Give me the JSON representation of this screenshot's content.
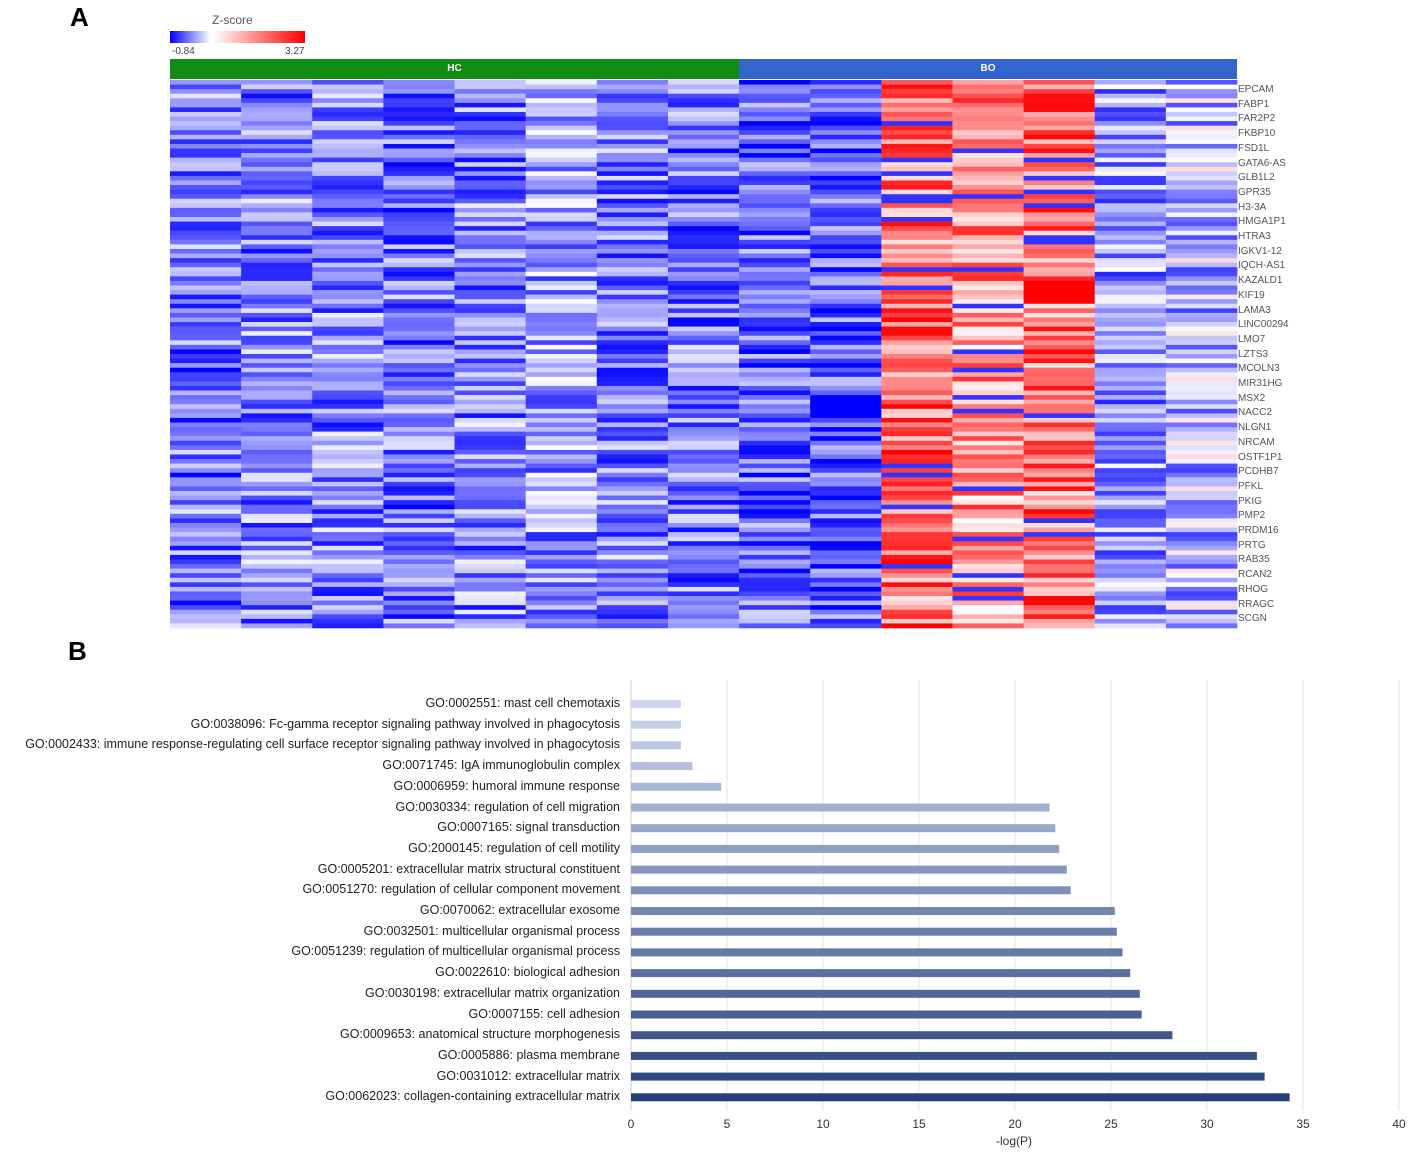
{
  "panels": {
    "a_label": "A",
    "b_label": "B"
  },
  "heatmap": {
    "legend_title": "Z-score",
    "legend_min": "-0.84",
    "legend_max": "3.27",
    "groups": [
      {
        "name": "HC",
        "columns": 8,
        "color": "#128c12"
      },
      {
        "name": "BO",
        "columns": 7,
        "color": "#3366cc"
      }
    ],
    "genes": [
      "EPCAM",
      "FABP1",
      "FAR2P2",
      "FKBP10",
      "FSD1L",
      "GATA6-AS",
      "GLB1L2",
      "GPR35",
      "H3-3A",
      "HMGA1P1",
      "HTRA3",
      "IGKV1-12",
      "IQCH-AS1",
      "KAZALD1",
      "KIF19",
      "LAMA3",
      "LINC00294",
      "LMO7",
      "LZTS3",
      "MCOLN3",
      "MIR31HG",
      "MSX2",
      "NACC2",
      "NLGN1",
      "NRCAM",
      "OSTF1P1",
      "PCDHB7",
      "PFKL",
      "PKIG",
      "PMP2",
      "PRDM16",
      "PRTG",
      "RAB35",
      "RCAN2",
      "RHOG",
      "RRAGC",
      "SCGN"
    ],
    "colors": {
      "low": "#0000ff",
      "mid": "#ffffff",
      "high": "#ff0000"
    }
  },
  "chart_data": {
    "type": "bar",
    "orientation": "horizontal",
    "xlabel": "-log(P)",
    "xlim": [
      0,
      40
    ],
    "xticks": [
      0,
      5,
      10,
      15,
      20,
      25,
      30,
      35,
      40
    ],
    "grid": true,
    "categories": [
      "GO:0002551: mast cell chemotaxis",
      "GO:0038096: Fc-gamma receptor signaling pathway involved in phagocytosis",
      "GO:0002433: immune response-regulating cell surface receptor signaling pathway involved in phagocytosis",
      "GO:0071745: IgA immunoglobulin complex",
      "GO:0006959: humoral immune response",
      "GO:0030334: regulation of cell migration",
      "GO:0007165: signal transduction",
      "GO:2000145: regulation of cell motility",
      "GO:0005201: extracellular matrix structural constituent",
      "GO:0051270: regulation of cellular component movement",
      "GO:0070062: extracellular exosome",
      "GO:0032501: multicellular organismal process",
      "GO:0051239: regulation of multicellular organismal process",
      "GO:0022610: biological adhesion",
      "GO:0030198: extracellular matrix organization",
      "GO:0007155: cell adhesion",
      "GO:0009653: anatomical structure morphogenesis",
      "GO:0005886: plasma membrane",
      "GO:0031012: extracellular matrix",
      "GO:0062023: collagen-containing extracellular matrix"
    ],
    "values": [
      2.6,
      2.6,
      2.6,
      3.2,
      4.7,
      21.8,
      22.1,
      22.3,
      22.7,
      22.9,
      25.2,
      25.3,
      25.6,
      26.0,
      26.5,
      26.6,
      28.2,
      32.6,
      33.0,
      34.3
    ],
    "color_light": "#cdd6ef",
    "color_dark": "#26407a"
  }
}
